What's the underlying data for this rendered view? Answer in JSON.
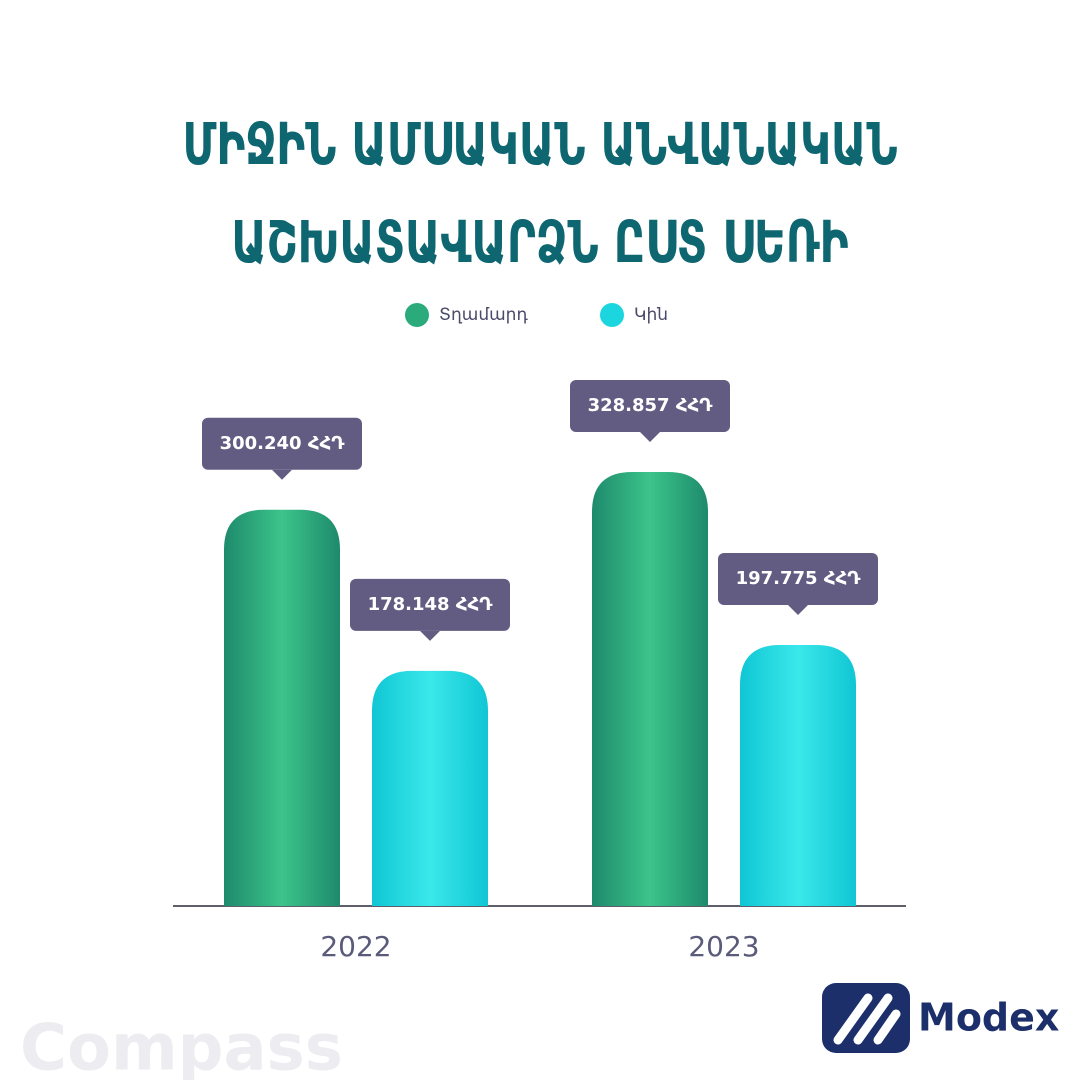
{
  "chart_data": {
    "type": "bar",
    "title": "ՄԻՋԻՆ ԱՄՍԱԿԱՆ ԱՆՎԱՆԱԿԱՆ ԱՇԽԱՏԱՎԱՐՁՆ ԸՍՏ ՍԵՌԻ",
    "categories": [
      "2022",
      "2023"
    ],
    "series": [
      {
        "name": "Տղամարդ",
        "color": "#2bab7c",
        "values": [
          300240,
          328857
        ],
        "value_labels": [
          "300.240 ՀՀԴ",
          "328.857 ՀՀԴ"
        ]
      },
      {
        "name": "Կին",
        "color": "#1cd6df",
        "values": [
          178148,
          197775
        ],
        "value_labels": [
          "178.148 ՀՀԴ",
          "197.775 ՀՀԴ"
        ]
      }
    ]
  },
  "brand": {
    "logo": "Modex",
    "watermark": "Compass"
  }
}
